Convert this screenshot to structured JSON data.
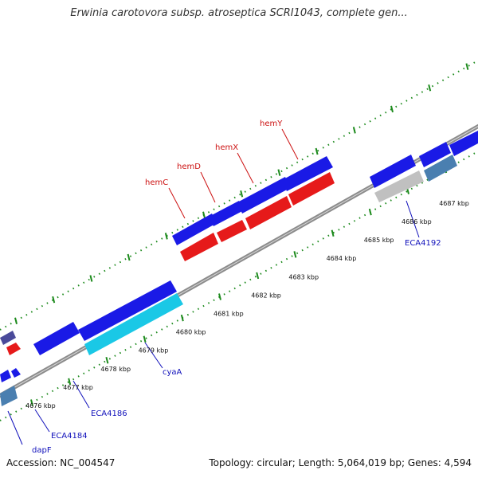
{
  "title": "Erwinia carotovora subsp. atroseptica SCRI1043, complete gen...",
  "accession": "Accession: NC_004547",
  "summary": "Topology: circular; Length: 5,064,019 bp; Genes: 4,594",
  "colors": {
    "backbone": "#8c8c8c",
    "tick_green": "#1c8a1c",
    "forward_gene": "#1a1ae6",
    "reverse_gene": "#e61a1a",
    "cyan_gene": "#1ac8e6",
    "steel_gene": "#4a7fb0",
    "gray_gene": "#c0c0c0",
    "label_red": "#cc1111",
    "label_blue": "#1111bb"
  },
  "scale_labels": [
    "4676 kbp",
    "4677 kbp",
    "4678 kbp",
    "4679 kbp",
    "4680 kbp",
    "4681 kbp",
    "4682 kbp",
    "4683 kbp",
    "4684 kbp",
    "4685 kbp",
    "4686 kbp",
    "4687 kbp"
  ],
  "gene_labels_red": [
    "hemC",
    "hemD",
    "hemX",
    "hemY"
  ],
  "gene_labels_blue": [
    "dapF",
    "ECA4184",
    "ECA4186",
    "cyaA",
    "ECA4192"
  ]
}
